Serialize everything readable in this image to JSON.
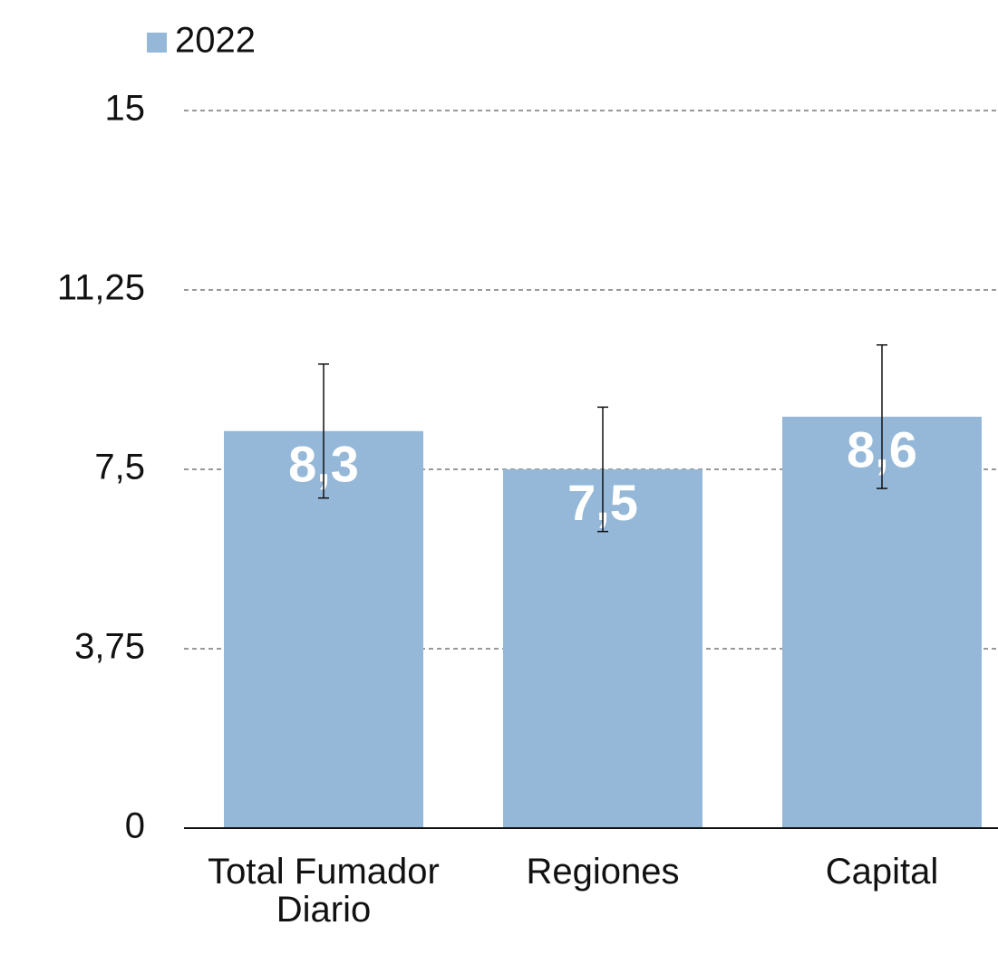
{
  "chart_data": {
    "type": "bar",
    "categories": [
      "Total Fumador Diario",
      "Regiones",
      "Capital"
    ],
    "series": [
      {
        "name": "2022",
        "color": "#95b8d8",
        "values": [
          8.3,
          7.5,
          8.6
        ],
        "value_labels": [
          "8,3",
          "7,5",
          "8,6"
        ],
        "errors": [
          1.4,
          1.3,
          1.5
        ]
      }
    ],
    "ylim": [
      0,
      15
    ],
    "yticks": [
      0,
      {
        "value": 3.75,
        "label": "3,75"
      },
      {
        "value": 7.5,
        "label": "7,5"
      },
      {
        "value": 11.25,
        "label": "11,25"
      },
      15
    ],
    "grid": true,
    "legend": "top-left"
  }
}
